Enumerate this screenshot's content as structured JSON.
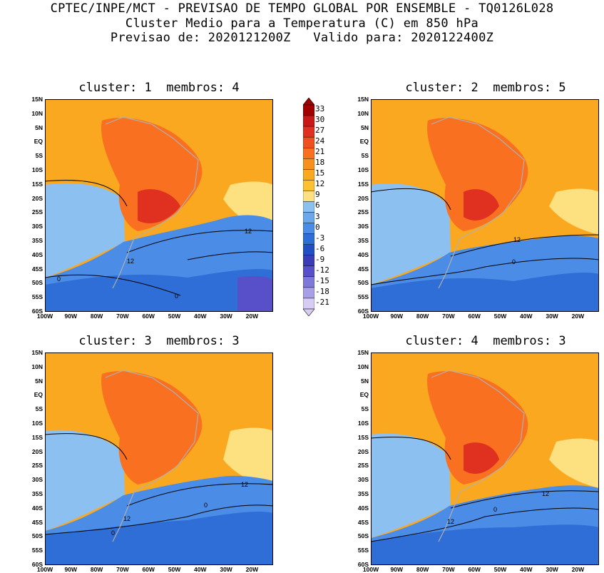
{
  "header": {
    "line1": "CPTEC/INPE/MCT - PREVISAO DE TEMPO GLOBAL POR ENSEMBLE - TQ0126L028",
    "line2": "Cluster Medio para a Temperatura (C) em 850 hPa",
    "line3": "Previsao de: 2020121200Z   Valido para: 2020122400Z"
  },
  "panels": [
    {
      "title": "cluster: 1  membros: 4",
      "contours": [
        "12",
        "12",
        "0",
        "0"
      ]
    },
    {
      "title": "cluster: 2  membros: 5",
      "contours": [
        "12",
        "0"
      ]
    },
    {
      "title": "cluster: 3  membros: 3",
      "contours": [
        "12",
        "12",
        "0",
        "0"
      ]
    },
    {
      "title": "cluster: 4  membros: 3",
      "contours": [
        "12",
        "12",
        "0"
      ]
    }
  ],
  "lat_labels": [
    "15N",
    "10N",
    "5N",
    "EQ",
    "5S",
    "10S",
    "15S",
    "20S",
    "25S",
    "30S",
    "35S",
    "40S",
    "45S",
    "50S",
    "55S",
    "60S"
  ],
  "lon_labels": [
    "100W",
    "90W",
    "80W",
    "70W",
    "60W",
    "50W",
    "40W",
    "30W",
    "20W"
  ],
  "colorbar": {
    "labels": [
      "33",
      "30",
      "27",
      "24",
      "21",
      "18",
      "15",
      "12",
      "9",
      "6",
      "3",
      "0",
      "-3",
      "-6",
      "-9",
      "-12",
      "-15",
      "-18",
      "-21"
    ],
    "colors": [
      "#a00000",
      "#c81818",
      "#e03020",
      "#f05020",
      "#f87020",
      "#f89020",
      "#faa820",
      "#fcc030",
      "#fde080",
      "#8cc0f0",
      "#6aa8ec",
      "#4a8ce6",
      "#2e6ed6",
      "#2250c4",
      "#3a3cb8",
      "#5850c8",
      "#7e78d8",
      "#a8a0e6",
      "#d6ccf4"
    ]
  }
}
